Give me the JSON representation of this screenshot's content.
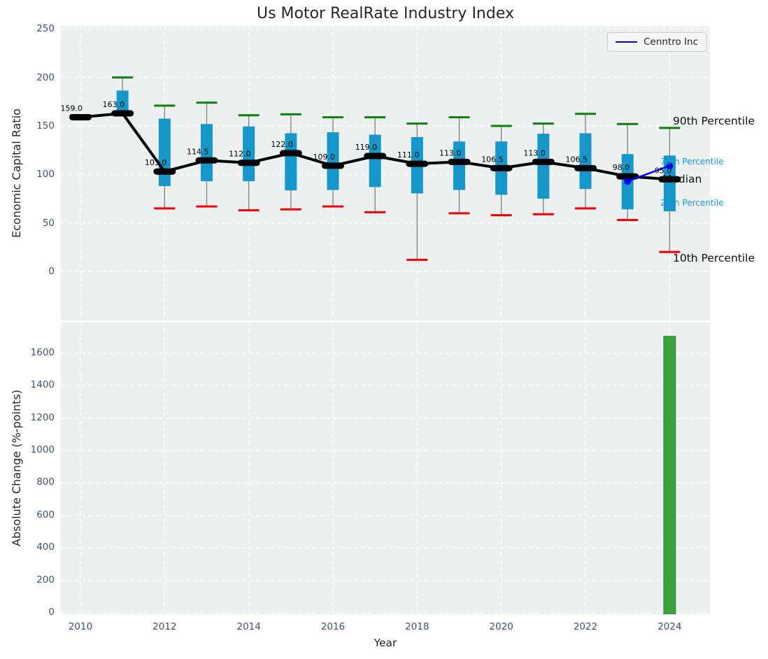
{
  "title": "Us Motor RealRate Industry Index",
  "legend": {
    "label": "Cenntro Inc"
  },
  "annotations": {
    "p90": "90th Percentile",
    "p75": "75th Percentile",
    "median": "Median",
    "p25": "25th Percentile",
    "p10": "10th Percentile"
  },
  "colors": {
    "box": "#1697c9",
    "median": "#000000",
    "p90_cap": "#0b800b",
    "p10_cap": "#f40000",
    "whisker": "#808080",
    "company_line": "#0000e0",
    "bar": "#3ca03c",
    "bar_edge": "#2e8b2e",
    "panel_bg": "#ecf0f1",
    "grid": "#ffffff",
    "tick_text": "#3e5272",
    "percentile_text": "#189ad1",
    "text": "#262626"
  },
  "axes": {
    "top": {
      "ylabel": "Economic Capital Ratio",
      "yticks": [
        0,
        50,
        100,
        150,
        200,
        250
      ]
    },
    "bottom": {
      "ylabel": "Absolute Change (%-points)",
      "xlabel": "Year",
      "yticks": [
        0,
        200,
        400,
        600,
        800,
        1000,
        1200,
        1400,
        1600
      ],
      "xticks": [
        2010,
        2012,
        2014,
        2016,
        2018,
        2020,
        2022,
        2024
      ]
    }
  },
  "chart_data": [
    {
      "type": "boxplot",
      "title": "Us Motor RealRate Industry Index",
      "ylabel": "Economic Capital Ratio",
      "ylim": [
        -50,
        253
      ],
      "grid": true,
      "legend_position": "upper right",
      "x": [
        2010,
        2011,
        2012,
        2013,
        2014,
        2015,
        2016,
        2017,
        2018,
        2019,
        2020,
        2021,
        2022,
        2023,
        2024
      ],
      "median": [
        159.0,
        163.0,
        103.0,
        114.5,
        112.0,
        122.0,
        109.0,
        119.0,
        111.0,
        113.0,
        106.5,
        113.0,
        106.5,
        98.0,
        95.0
      ],
      "median_labels": [
        "159.0",
        "163.0",
        "103.0",
        "114.5",
        "112.0",
        "122.0",
        "109.0",
        "119.0",
        "111.0",
        "113.0",
        "106.5",
        "113.0",
        "106.5",
        "98.0",
        "95.0"
      ],
      "q25": [
        157.5,
        163,
        88,
        93,
        93,
        83.5,
        84,
        87,
        80.5,
        84,
        79,
        75,
        85,
        64,
        62
      ],
      "q75": [
        160.5,
        186.5,
        157.5,
        152,
        149.5,
        142.5,
        143.5,
        141,
        138.5,
        134,
        134,
        142,
        142.5,
        121,
        119.5
      ],
      "p90": [
        161,
        200,
        171,
        174,
        161,
        162,
        159,
        159,
        152.5,
        159,
        150,
        152.5,
        162.5,
        152,
        148
      ],
      "p10": [
        null,
        null,
        65,
        67,
        63,
        64,
        67,
        61,
        12,
        60,
        58,
        59,
        65,
        53,
        20
      ],
      "company_line": {
        "name": "Cenntro Inc",
        "x": [
          2023,
          2024
        ],
        "y": [
          93,
          109
        ]
      }
    },
    {
      "type": "bar",
      "ylabel": "Absolute Change (%-points)",
      "xlabel": "Year",
      "ylim": [
        0,
        1790
      ],
      "grid": true,
      "x": [
        2024
      ],
      "values": [
        1705
      ]
    }
  ]
}
